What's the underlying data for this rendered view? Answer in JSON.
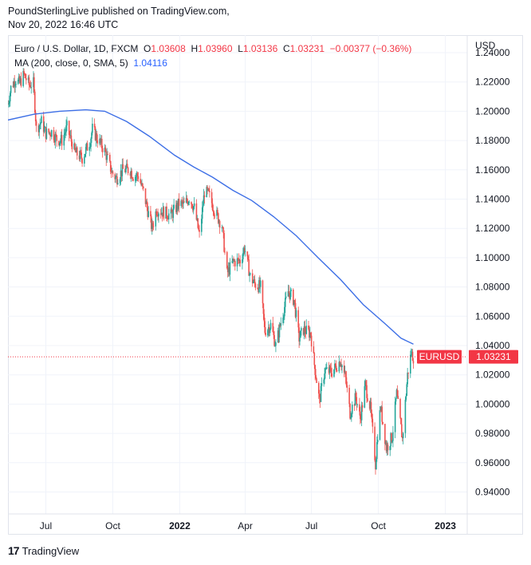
{
  "header": {
    "line1": "PoundSterlingLive published on TradingView.com,",
    "line2": "Nov 20, 2022 16:46 UTC"
  },
  "legend": {
    "symbol": "Euro / U.S. Dollar, 1D, FXCM",
    "o_label": "O",
    "o_value": "1.03608",
    "h_label": "H",
    "h_value": "1.03960",
    "l_label": "L",
    "l_value": "1.03136",
    "c_label": "C",
    "c_value": "1.03231",
    "change": "−0.00377 (−0.36%)",
    "ma_label": "MA (200, close, 0, SMA, 5)",
    "ma_value": "1.04116"
  },
  "axis": {
    "currency": "USD"
  },
  "price_tag": {
    "symbol": "EURUSD",
    "value": "1.03231"
  },
  "footer": {
    "logo": "17",
    "brand": "TradingView"
  },
  "colors": {
    "up": "#26a69a",
    "down": "#ef5350",
    "ma": "#3d6fe6",
    "grid": "#f0f3fa",
    "tag": "#f23645"
  },
  "chart_data": {
    "type": "candlestick",
    "ylim": [
      0.925,
      1.252
    ],
    "y_ticks": [
      0.94,
      0.96,
      0.98,
      1.0,
      1.02,
      1.04,
      1.06,
      1.08,
      1.1,
      1.12,
      1.14,
      1.16,
      1.18,
      1.2,
      1.22,
      1.24
    ],
    "y_tick_labels": [
      "0.94000",
      "0.96000",
      "0.98000",
      "1.00000",
      "1.02000",
      "1.04000",
      "1.06000",
      "1.08000",
      "1.10000",
      "1.12000",
      "1.14000",
      "1.16000",
      "1.18000",
      "1.20000",
      "1.22000",
      "1.24000"
    ],
    "x_range": [
      "2021-05-10",
      "2023-01-31"
    ],
    "x_ticks": [
      {
        "label": "Jul",
        "date": "2021-07-01",
        "bold": false
      },
      {
        "label": "Oct",
        "date": "2021-10-01",
        "bold": false
      },
      {
        "label": "2022",
        "date": "2022-01-01",
        "bold": true
      },
      {
        "label": "Apr",
        "date": "2022-04-01",
        "bold": false
      },
      {
        "label": "Jul",
        "date": "2022-07-01",
        "bold": false
      },
      {
        "label": "Oct",
        "date": "2022-10-01",
        "bold": false
      },
      {
        "label": "2023",
        "date": "2023-01-01",
        "bold": true
      }
    ],
    "close_path": [
      [
        "2021-05-10",
        1.205
      ],
      [
        "2021-05-14",
        1.216
      ],
      [
        "2021-05-20",
        1.222
      ],
      [
        "2021-05-26",
        1.219
      ],
      [
        "2021-06-01",
        1.225
      ],
      [
        "2021-06-08",
        1.218
      ],
      [
        "2021-06-14",
        1.219
      ],
      [
        "2021-06-18",
        1.188
      ],
      [
        "2021-06-25",
        1.193
      ],
      [
        "2021-07-01",
        1.185
      ],
      [
        "2021-07-09",
        1.186
      ],
      [
        "2021-07-16",
        1.181
      ],
      [
        "2021-07-23",
        1.18
      ],
      [
        "2021-07-30",
        1.189
      ],
      [
        "2021-08-10",
        1.172
      ],
      [
        "2021-08-20",
        1.168
      ],
      [
        "2021-08-31",
        1.18
      ],
      [
        "2021-09-03",
        1.188
      ],
      [
        "2021-09-10",
        1.181
      ],
      [
        "2021-09-20",
        1.173
      ],
      [
        "2021-09-30",
        1.158
      ],
      [
        "2021-10-06",
        1.154
      ],
      [
        "2021-10-15",
        1.16
      ],
      [
        "2021-10-25",
        1.16
      ],
      [
        "2021-10-29",
        1.156
      ],
      [
        "2021-11-05",
        1.156
      ],
      [
        "2021-11-12",
        1.145
      ],
      [
        "2021-11-19",
        1.13
      ],
      [
        "2021-11-24",
        1.12
      ],
      [
        "2021-11-30",
        1.133
      ],
      [
        "2021-12-10",
        1.131
      ],
      [
        "2021-12-20",
        1.129
      ],
      [
        "2021-12-31",
        1.137
      ],
      [
        "2022-01-07",
        1.136
      ],
      [
        "2022-01-14",
        1.141
      ],
      [
        "2022-01-21",
        1.134
      ],
      [
        "2022-01-28",
        1.115
      ],
      [
        "2022-02-04",
        1.145
      ],
      [
        "2022-02-10",
        1.143
      ],
      [
        "2022-02-18",
        1.132
      ],
      [
        "2022-02-28",
        1.122
      ],
      [
        "2022-03-07",
        1.089
      ],
      [
        "2022-03-15",
        1.097
      ],
      [
        "2022-03-25",
        1.098
      ],
      [
        "2022-03-31",
        1.107
      ],
      [
        "2022-04-08",
        1.087
      ],
      [
        "2022-04-14",
        1.082
      ],
      [
        "2022-04-22",
        1.08
      ],
      [
        "2022-04-28",
        1.05
      ],
      [
        "2022-05-06",
        1.054
      ],
      [
        "2022-05-13",
        1.04
      ],
      [
        "2022-05-20",
        1.056
      ],
      [
        "2022-05-30",
        1.077
      ],
      [
        "2022-06-07",
        1.071
      ],
      [
        "2022-06-14",
        1.045
      ],
      [
        "2022-06-20",
        1.051
      ],
      [
        "2022-06-30",
        1.048
      ],
      [
        "2022-07-05",
        1.027
      ],
      [
        "2022-07-12",
        1.002
      ],
      [
        "2022-07-19",
        1.023
      ],
      [
        "2022-07-29",
        1.022
      ],
      [
        "2022-08-10",
        1.03
      ],
      [
        "2022-08-17",
        1.017
      ],
      [
        "2022-08-23",
        0.994
      ],
      [
        "2022-08-31",
        1.005
      ],
      [
        "2022-09-06",
        0.99
      ],
      [
        "2022-09-13",
        1.013
      ],
      [
        "2022-09-20",
        0.997
      ],
      [
        "2022-09-27",
        0.959
      ],
      [
        "2022-09-30",
        0.98
      ],
      [
        "2022-10-04",
        0.998
      ],
      [
        "2022-10-12",
        0.97
      ],
      [
        "2022-10-20",
        0.978
      ],
      [
        "2022-10-26",
        1.007
      ],
      [
        "2022-11-03",
        0.976
      ],
      [
        "2022-11-10",
        1.02
      ],
      [
        "2022-11-15",
        1.035
      ],
      [
        "2022-11-18",
        1.032
      ]
    ],
    "series": [
      {
        "name": "EURUSD",
        "points": "daily OHLC candles following close_path"
      },
      {
        "name": "MA (200, close, 0, SMA, 5)",
        "points": [
          [
            "2021-05-10",
            1.194
          ],
          [
            "2021-06-15",
            1.198
          ],
          [
            "2021-07-20",
            1.2
          ],
          [
            "2021-08-25",
            1.201
          ],
          [
            "2021-09-20",
            1.2
          ],
          [
            "2021-10-20",
            1.193
          ],
          [
            "2021-11-20",
            1.183
          ],
          [
            "2021-12-25",
            1.17
          ],
          [
            "2022-01-20",
            1.162
          ],
          [
            "2022-02-15",
            1.155
          ],
          [
            "2022-03-15",
            1.146
          ],
          [
            "2022-04-10",
            1.139
          ],
          [
            "2022-05-10",
            1.128
          ],
          [
            "2022-06-10",
            1.115
          ],
          [
            "2022-07-10",
            1.1
          ],
          [
            "2022-08-10",
            1.085
          ],
          [
            "2022-09-10",
            1.068
          ],
          [
            "2022-10-10",
            1.055
          ],
          [
            "2022-11-01",
            1.045
          ],
          [
            "2022-11-18",
            1.041
          ]
        ]
      }
    ],
    "last_close": 1.03231,
    "grid": true
  }
}
